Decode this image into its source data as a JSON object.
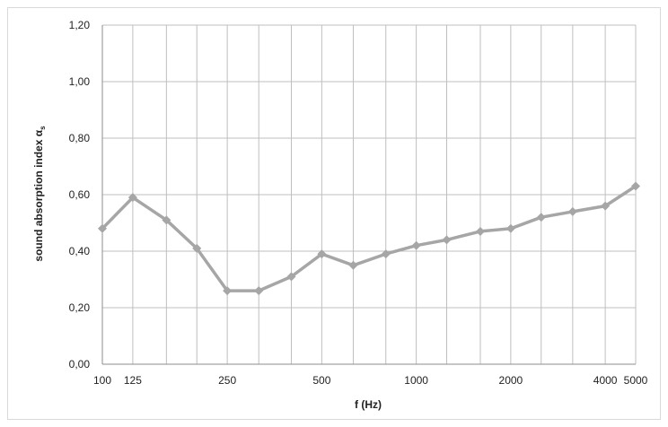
{
  "chart_data": {
    "type": "line",
    "x": [
      100,
      125,
      160,
      200,
      250,
      315,
      400,
      500,
      630,
      800,
      1000,
      1250,
      1600,
      2000,
      2500,
      3150,
      4000,
      5000
    ],
    "series": [
      {
        "values": [
          0.48,
          0.59,
          0.51,
          0.41,
          0.26,
          0.26,
          0.31,
          0.39,
          0.35,
          0.39,
          0.42,
          0.44,
          0.47,
          0.48,
          0.52,
          0.54,
          0.56,
          0.63
        ]
      }
    ],
    "x_tick_values": [
      100,
      125,
      250,
      500,
      1000,
      2000,
      4000,
      5000
    ],
    "x_tick_labels": [
      "100",
      "125",
      "250",
      "500",
      "1000",
      "2000",
      "4000",
      "5000"
    ],
    "y_tick_values": [
      0,
      0.2,
      0.4,
      0.6,
      0.8,
      1.0,
      1.2
    ],
    "y_tick_labels": [
      "0,00",
      "0,20",
      "0,40",
      "0,60",
      "0,80",
      "1,00",
      "1,20"
    ],
    "xlabel": "f (Hz)",
    "ylabel": "sound absorption index α",
    "ylabel_subscript": "s",
    "ylim": [
      0,
      1.2
    ],
    "x_scale": "log",
    "grid": true,
    "legend": "none",
    "series_color": "#a6a6a6",
    "grid_color": "#bfbfbf"
  }
}
